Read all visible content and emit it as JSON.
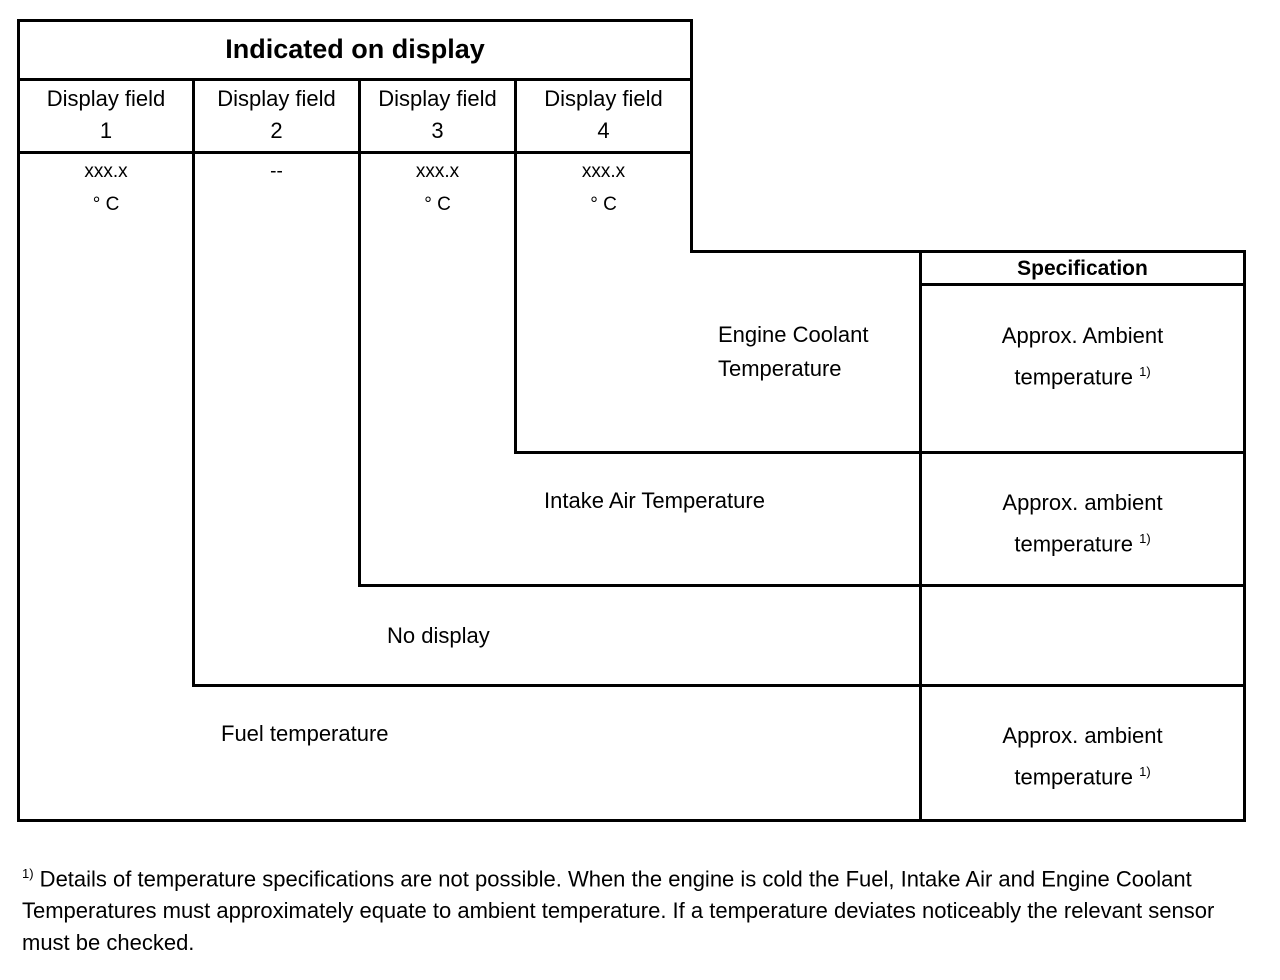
{
  "title": "Indicated on display",
  "fields": [
    {
      "label": "Display field",
      "num": "1",
      "value": "xxx.x",
      "unit": "° C"
    },
    {
      "label": "Display field",
      "num": "2",
      "value": "--",
      "unit": ""
    },
    {
      "label": "Display field",
      "num": "3",
      "value": "xxx.x",
      "unit": "° C"
    },
    {
      "label": "Display field",
      "num": "4",
      "value": "xxx.x",
      "unit": "° C"
    }
  ],
  "spec_header": "Specification",
  "rows": [
    {
      "name_1": "Engine Coolant",
      "name_2": "Temperature",
      "spec_1": "Approx.  Ambient",
      "spec_2": "temperature",
      "note": "1)"
    },
    {
      "name_1": "Intake Air  Temperature",
      "spec_1": "Approx. ambient",
      "spec_2": "temperature",
      "note": "1)"
    },
    {
      "name_1": "No display"
    },
    {
      "name_1": "Fuel temperature",
      "spec_1": "Approx. ambient",
      "spec_2": "temperature",
      "note": "1)"
    }
  ],
  "footnote": {
    "marker": "1)",
    "text": " Details of temperature specifications are not possible. When the engine is cold the Fuel, Intake Air and Engine Coolant Temperatures must approximately equate to ambient temperature. If a temperature deviates noticeably the relevant sensor must be checked."
  }
}
